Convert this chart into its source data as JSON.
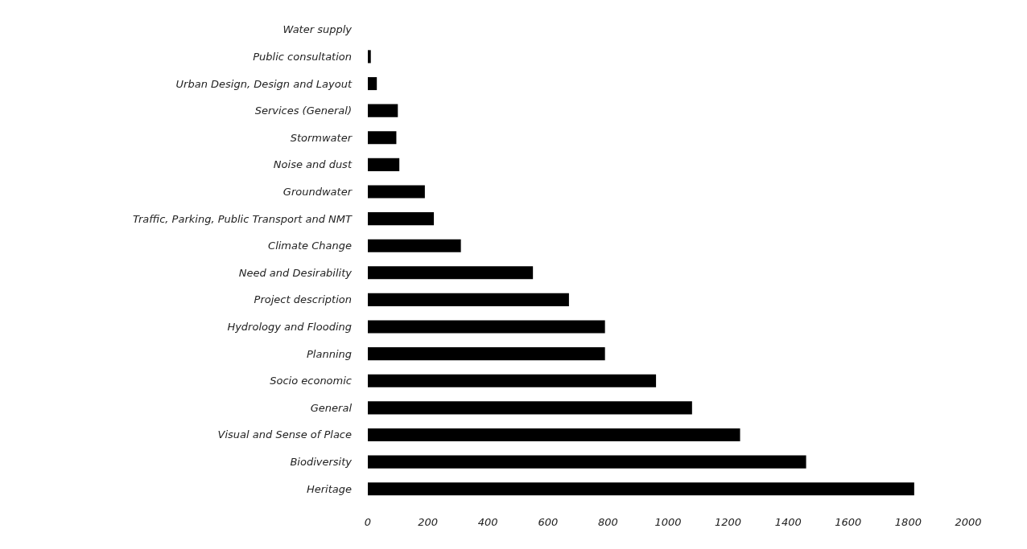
{
  "chart_data": {
    "type": "bar",
    "orientation": "horizontal",
    "categories": [
      "Water supply",
      "Public consultation",
      "Urban Design, Design and Layout",
      "Services (General)",
      "Stormwater",
      "Noise and dust",
      "Groundwater",
      "Traffic, Parking, Public Transport and NMT",
      "Climate Change",
      "Need and Desirability",
      "Project description",
      "Hydrology and Flooding",
      "Planning",
      "Socio economic",
      "General",
      "Visual and Sense of Place",
      "Biodiversity",
      "Heritage"
    ],
    "values": [
      0,
      10,
      30,
      100,
      95,
      105,
      190,
      220,
      310,
      550,
      670,
      790,
      790,
      960,
      1080,
      1240,
      1460,
      1820
    ],
    "color": "#000000",
    "xlim": [
      0,
      2000
    ],
    "xticks": [
      0,
      200,
      400,
      600,
      800,
      1000,
      1200,
      1400,
      1600,
      1800,
      2000
    ],
    "grid": false
  }
}
